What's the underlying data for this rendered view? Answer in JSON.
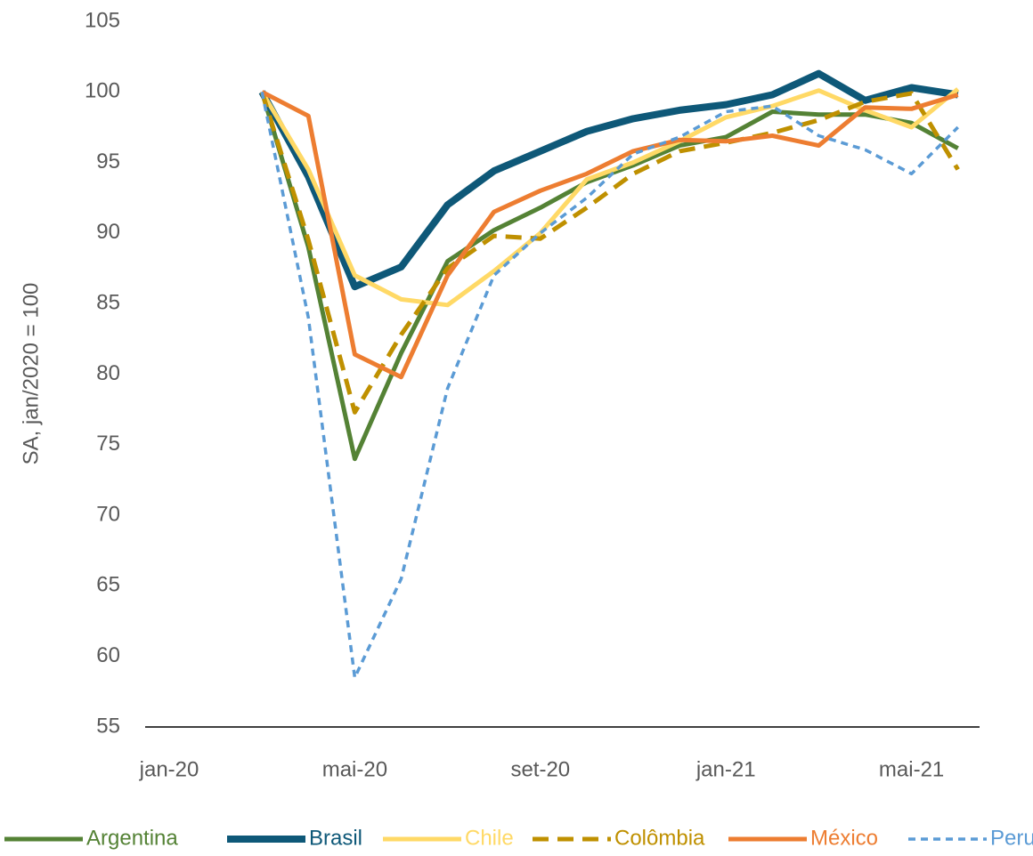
{
  "chart_data": {
    "type": "line",
    "y_label": "SA, jan/2020 = 100",
    "categories": [
      "jan-20",
      null,
      null,
      null,
      "mai-20",
      null,
      null,
      null,
      "set-20",
      null,
      null,
      null,
      "jan-21",
      null,
      null,
      null,
      "mai-21",
      null
    ],
    "ylim": [
      55,
      105
    ],
    "yticks": [
      55,
      60,
      65,
      70,
      75,
      80,
      85,
      90,
      95,
      100,
      105
    ],
    "grid": false,
    "legend": "bottom",
    "series": [
      {
        "name": "Argentina",
        "color": "#548235",
        "dash": false,
        "width": 5,
        "values": [
          null,
          null,
          100,
          89,
          74,
          81.5,
          88,
          90.2,
          91.8,
          93.6,
          94.8,
          96.2,
          96.8,
          98.6,
          98.4,
          98.4,
          97.8,
          96
        ]
      },
      {
        "name": "Brasil",
        "color": "#0e5878",
        "dash": false,
        "width": 8,
        "values": [
          null,
          null,
          100,
          94,
          86.2,
          87.6,
          92,
          94.4,
          95.8,
          97.2,
          98.1,
          98.7,
          99.1,
          99.8,
          101.3,
          99.4,
          100.3,
          99.8
        ]
      },
      {
        "name": "Chile",
        "color": "#ffd966",
        "dash": false,
        "width": 5,
        "values": [
          null,
          null,
          100,
          94.5,
          87,
          85.3,
          84.9,
          87.3,
          90,
          93.8,
          95,
          96.5,
          98.2,
          99,
          100.1,
          98.7,
          97.5,
          100.2
        ]
      },
      {
        "name": "Colômbia",
        "color": "#bf9000",
        "dash": true,
        "width": 5,
        "values": [
          null,
          null,
          100,
          89.5,
          77.3,
          82.8,
          87.5,
          89.8,
          89.6,
          91.8,
          94.2,
          95.8,
          96.4,
          97.1,
          98,
          99.3,
          99.9,
          94.5
        ]
      },
      {
        "name": "México",
        "color": "#ed7d31",
        "dash": false,
        "width": 5,
        "values": [
          null,
          null,
          100,
          98.3,
          81.4,
          79.8,
          87,
          91.5,
          93,
          94.2,
          95.8,
          96.6,
          96.5,
          96.9,
          96.2,
          98.9,
          98.8,
          99.8
        ]
      },
      {
        "name": "Peru",
        "color": "#5b9bd5",
        "dash": true,
        "width": 3.5,
        "values": [
          null,
          null,
          100,
          84,
          58.5,
          65.5,
          79,
          87,
          90,
          92.5,
          95.6,
          96.8,
          98.6,
          99,
          96.9,
          95.9,
          94.2,
          97.5
        ]
      }
    ]
  }
}
